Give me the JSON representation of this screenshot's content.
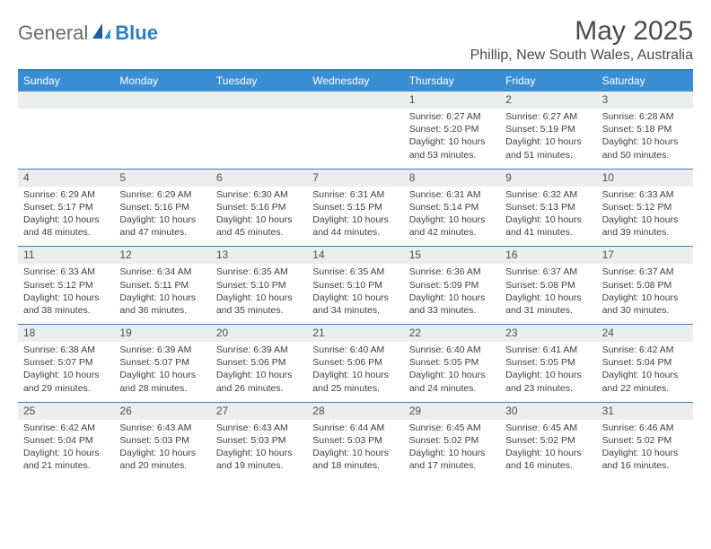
{
  "header": {
    "logo_general": "General",
    "logo_blue": "Blue",
    "month_title": "May 2025",
    "location": "Phillip, New South Wales, Australia"
  },
  "colors": {
    "accent": "#3a8fd4",
    "border": "#2f7fc2",
    "daynum_bg": "#eceded",
    "text": "#4a4a4a"
  },
  "day_headers": [
    "Sunday",
    "Monday",
    "Tuesday",
    "Wednesday",
    "Thursday",
    "Friday",
    "Saturday"
  ],
  "weeks": [
    [
      {
        "n": "",
        "sr": "",
        "ss": "",
        "dl1": "",
        "dl2": ""
      },
      {
        "n": "",
        "sr": "",
        "ss": "",
        "dl1": "",
        "dl2": ""
      },
      {
        "n": "",
        "sr": "",
        "ss": "",
        "dl1": "",
        "dl2": ""
      },
      {
        "n": "",
        "sr": "",
        "ss": "",
        "dl1": "",
        "dl2": ""
      },
      {
        "n": "1",
        "sr": "Sunrise: 6:27 AM",
        "ss": "Sunset: 5:20 PM",
        "dl1": "Daylight: 10 hours",
        "dl2": "and 53 minutes."
      },
      {
        "n": "2",
        "sr": "Sunrise: 6:27 AM",
        "ss": "Sunset: 5:19 PM",
        "dl1": "Daylight: 10 hours",
        "dl2": "and 51 minutes."
      },
      {
        "n": "3",
        "sr": "Sunrise: 6:28 AM",
        "ss": "Sunset: 5:18 PM",
        "dl1": "Daylight: 10 hours",
        "dl2": "and 50 minutes."
      }
    ],
    [
      {
        "n": "4",
        "sr": "Sunrise: 6:29 AM",
        "ss": "Sunset: 5:17 PM",
        "dl1": "Daylight: 10 hours",
        "dl2": "and 48 minutes."
      },
      {
        "n": "5",
        "sr": "Sunrise: 6:29 AM",
        "ss": "Sunset: 5:16 PM",
        "dl1": "Daylight: 10 hours",
        "dl2": "and 47 minutes."
      },
      {
        "n": "6",
        "sr": "Sunrise: 6:30 AM",
        "ss": "Sunset: 5:16 PM",
        "dl1": "Daylight: 10 hours",
        "dl2": "and 45 minutes."
      },
      {
        "n": "7",
        "sr": "Sunrise: 6:31 AM",
        "ss": "Sunset: 5:15 PM",
        "dl1": "Daylight: 10 hours",
        "dl2": "and 44 minutes."
      },
      {
        "n": "8",
        "sr": "Sunrise: 6:31 AM",
        "ss": "Sunset: 5:14 PM",
        "dl1": "Daylight: 10 hours",
        "dl2": "and 42 minutes."
      },
      {
        "n": "9",
        "sr": "Sunrise: 6:32 AM",
        "ss": "Sunset: 5:13 PM",
        "dl1": "Daylight: 10 hours",
        "dl2": "and 41 minutes."
      },
      {
        "n": "10",
        "sr": "Sunrise: 6:33 AM",
        "ss": "Sunset: 5:12 PM",
        "dl1": "Daylight: 10 hours",
        "dl2": "and 39 minutes."
      }
    ],
    [
      {
        "n": "11",
        "sr": "Sunrise: 6:33 AM",
        "ss": "Sunset: 5:12 PM",
        "dl1": "Daylight: 10 hours",
        "dl2": "and 38 minutes."
      },
      {
        "n": "12",
        "sr": "Sunrise: 6:34 AM",
        "ss": "Sunset: 5:11 PM",
        "dl1": "Daylight: 10 hours",
        "dl2": "and 36 minutes."
      },
      {
        "n": "13",
        "sr": "Sunrise: 6:35 AM",
        "ss": "Sunset: 5:10 PM",
        "dl1": "Daylight: 10 hours",
        "dl2": "and 35 minutes."
      },
      {
        "n": "14",
        "sr": "Sunrise: 6:35 AM",
        "ss": "Sunset: 5:10 PM",
        "dl1": "Daylight: 10 hours",
        "dl2": "and 34 minutes."
      },
      {
        "n": "15",
        "sr": "Sunrise: 6:36 AM",
        "ss": "Sunset: 5:09 PM",
        "dl1": "Daylight: 10 hours",
        "dl2": "and 33 minutes."
      },
      {
        "n": "16",
        "sr": "Sunrise: 6:37 AM",
        "ss": "Sunset: 5:08 PM",
        "dl1": "Daylight: 10 hours",
        "dl2": "and 31 minutes."
      },
      {
        "n": "17",
        "sr": "Sunrise: 6:37 AM",
        "ss": "Sunset: 5:08 PM",
        "dl1": "Daylight: 10 hours",
        "dl2": "and 30 minutes."
      }
    ],
    [
      {
        "n": "18",
        "sr": "Sunrise: 6:38 AM",
        "ss": "Sunset: 5:07 PM",
        "dl1": "Daylight: 10 hours",
        "dl2": "and 29 minutes."
      },
      {
        "n": "19",
        "sr": "Sunrise: 6:39 AM",
        "ss": "Sunset: 5:07 PM",
        "dl1": "Daylight: 10 hours",
        "dl2": "and 28 minutes."
      },
      {
        "n": "20",
        "sr": "Sunrise: 6:39 AM",
        "ss": "Sunset: 5:06 PM",
        "dl1": "Daylight: 10 hours",
        "dl2": "and 26 minutes."
      },
      {
        "n": "21",
        "sr": "Sunrise: 6:40 AM",
        "ss": "Sunset: 5:06 PM",
        "dl1": "Daylight: 10 hours",
        "dl2": "and 25 minutes."
      },
      {
        "n": "22",
        "sr": "Sunrise: 6:40 AM",
        "ss": "Sunset: 5:05 PM",
        "dl1": "Daylight: 10 hours",
        "dl2": "and 24 minutes."
      },
      {
        "n": "23",
        "sr": "Sunrise: 6:41 AM",
        "ss": "Sunset: 5:05 PM",
        "dl1": "Daylight: 10 hours",
        "dl2": "and 23 minutes."
      },
      {
        "n": "24",
        "sr": "Sunrise: 6:42 AM",
        "ss": "Sunset: 5:04 PM",
        "dl1": "Daylight: 10 hours",
        "dl2": "and 22 minutes."
      }
    ],
    [
      {
        "n": "25",
        "sr": "Sunrise: 6:42 AM",
        "ss": "Sunset: 5:04 PM",
        "dl1": "Daylight: 10 hours",
        "dl2": "and 21 minutes."
      },
      {
        "n": "26",
        "sr": "Sunrise: 6:43 AM",
        "ss": "Sunset: 5:03 PM",
        "dl1": "Daylight: 10 hours",
        "dl2": "and 20 minutes."
      },
      {
        "n": "27",
        "sr": "Sunrise: 6:43 AM",
        "ss": "Sunset: 5:03 PM",
        "dl1": "Daylight: 10 hours",
        "dl2": "and 19 minutes."
      },
      {
        "n": "28",
        "sr": "Sunrise: 6:44 AM",
        "ss": "Sunset: 5:03 PM",
        "dl1": "Daylight: 10 hours",
        "dl2": "and 18 minutes."
      },
      {
        "n": "29",
        "sr": "Sunrise: 6:45 AM",
        "ss": "Sunset: 5:02 PM",
        "dl1": "Daylight: 10 hours",
        "dl2": "and 17 minutes."
      },
      {
        "n": "30",
        "sr": "Sunrise: 6:45 AM",
        "ss": "Sunset: 5:02 PM",
        "dl1": "Daylight: 10 hours",
        "dl2": "and 16 minutes."
      },
      {
        "n": "31",
        "sr": "Sunrise: 6:46 AM",
        "ss": "Sunset: 5:02 PM",
        "dl1": "Daylight: 10 hours",
        "dl2": "and 16 minutes."
      }
    ]
  ]
}
